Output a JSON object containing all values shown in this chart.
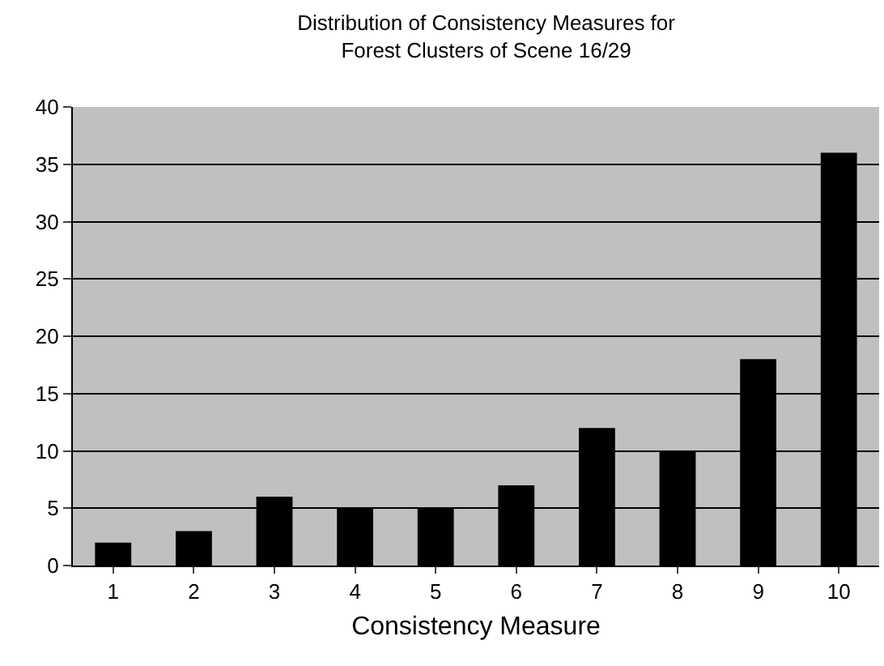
{
  "chart_data": {
    "type": "bar",
    "title": "Distribution of Consistency Measures for\nForest Clusters of Scene 16/29",
    "xlabel": "Consistency Measure",
    "categories": [
      "1",
      "2",
      "3",
      "4",
      "5",
      "6",
      "7",
      "8",
      "9",
      "10"
    ],
    "values": [
      2,
      3,
      6,
      5,
      5,
      7,
      12,
      10,
      18,
      36
    ],
    "color": "#000000",
    "ylim": [
      0,
      40
    ],
    "yticks": [
      0,
      5,
      10,
      15,
      20,
      25,
      30,
      35,
      40
    ],
    "grid": "y"
  }
}
